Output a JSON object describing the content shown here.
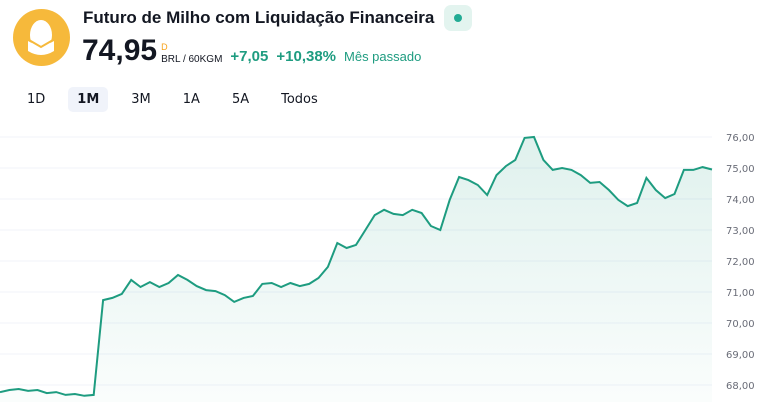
{
  "header": {
    "title": "Futuro de Milho com Liquidação Financeira",
    "price": "74,95",
    "price_flag": "D",
    "unit": "BRL / 60KGM",
    "change": "+7,05",
    "change_pct": "+10,38%",
    "period": "Mês passado",
    "status": "market-open-dot",
    "accent": "#1e9c80",
    "logo_icon": "corn-icon"
  },
  "tabs": [
    {
      "label": "1D"
    },
    {
      "label": "1M",
      "active": true
    },
    {
      "label": "3M"
    },
    {
      "label": "1A"
    },
    {
      "label": "5A"
    },
    {
      "label": "Todos"
    }
  ],
  "chart_data": {
    "type": "area",
    "ylim": [
      67.7,
      76.3
    ],
    "yticks": [
      "76,00",
      "75,00",
      "74,00",
      "73,00",
      "72,00",
      "71,00",
      "70,00",
      "69,00",
      "68,00"
    ],
    "grid": true,
    "line_color": "#1e9c80",
    "values": [
      67.77,
      67.84,
      67.87,
      67.81,
      67.84,
      67.74,
      67.77,
      67.68,
      67.71,
      67.65,
      67.68,
      70.74,
      70.81,
      70.94,
      71.39,
      71.16,
      71.32,
      71.16,
      71.29,
      71.55,
      71.39,
      71.19,
      71.06,
      71.03,
      70.9,
      70.68,
      70.81,
      70.87,
      71.26,
      71.29,
      71.16,
      71.29,
      71.19,
      71.26,
      71.45,
      71.81,
      72.58,
      72.42,
      72.52,
      73.0,
      73.48,
      73.65,
      73.52,
      73.48,
      73.65,
      73.55,
      73.13,
      73.0,
      73.97,
      74.71,
      74.61,
      74.45,
      74.13,
      74.77,
      75.06,
      75.26,
      75.97,
      76.0,
      75.26,
      74.94,
      75.0,
      74.94,
      74.77,
      74.52,
      74.55,
      74.29,
      73.97,
      73.77,
      73.87,
      74.68,
      74.29,
      74.03,
      74.16,
      74.94,
      74.94,
      75.03,
      74.95
    ]
  }
}
